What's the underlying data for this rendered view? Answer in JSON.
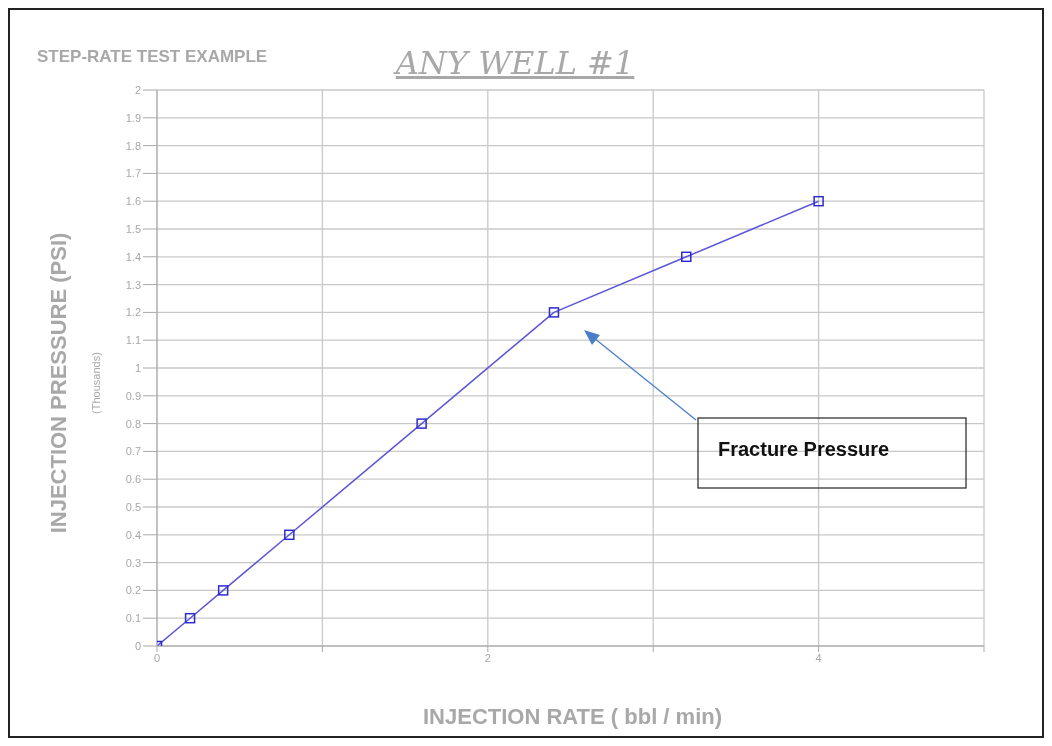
{
  "chart_data": {
    "type": "line",
    "title": "ANY WELL #1",
    "subtitle": "STEP-RATE TEST EXAMPLE",
    "xlabel": "INJECTION RATE ( bbl / min)",
    "ylabel": "INJECTION PRESSURE (PSI)",
    "annotations": [
      "(Thousands)",
      "Fracture Pressure"
    ],
    "x": [
      0,
      0.2,
      0.4,
      0.8,
      1.6,
      2.4,
      3.2,
      4
    ],
    "series": [
      {
        "color": "#5b55d8",
        "values": [
          0,
          0.1,
          0.2,
          0.4,
          0.8,
          1.2,
          1.4,
          1.6
        ]
      }
    ],
    "xlim": [
      0,
      5
    ],
    "xticks": [
      0,
      {
        "value": 1,
        "label": null
      },
      2,
      {
        "value": 3,
        "label": null
      },
      4,
      {
        "value": 5,
        "label": null
      }
    ],
    "ylim": [
      0,
      2
    ],
    "yticks": [
      0,
      0.1,
      0.2,
      0.3,
      0.4,
      0.5,
      0.6,
      0.7,
      0.8,
      0.9,
      1,
      1.1,
      1.2,
      1.3,
      1.4,
      1.5,
      1.6,
      1.7,
      1.8,
      1.9,
      2
    ],
    "grid": true,
    "marker": "square",
    "line_style": "solid"
  }
}
